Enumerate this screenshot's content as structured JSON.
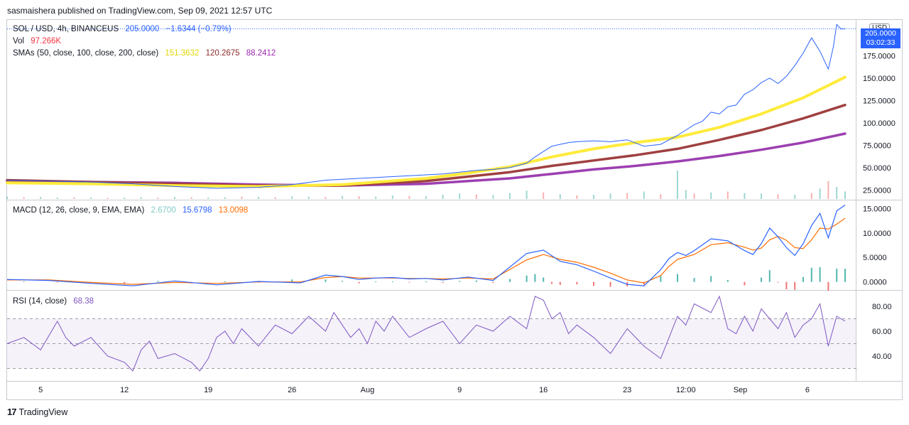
{
  "header": {
    "published": "sasmaishera published on TradingView.com, Sep 09, 2021 12:57 UTC"
  },
  "footer": {
    "brand": "TradingView",
    "logo_mark": "17"
  },
  "price_pane": {
    "symbol": "SOL / USD, 4h, BINANCEUS",
    "price": "205.0000",
    "change": "−1.6344 (−0.79%)",
    "vol_label": "Vol",
    "vol_value": "97.266K",
    "sma_label": "SMAs (50, close, 100, close, 200, close)",
    "sma50": "151.3632",
    "sma100": "120.2675",
    "sma200": "88.2412",
    "currency_badge": "USD",
    "price_tag": "205.0000",
    "countdown": "03:02:33"
  },
  "macd_pane": {
    "label": "MACD (12, 26, close, 9, EMA, EMA)",
    "hist": "2.6700",
    "macd": "15.6798",
    "signal": "13.0098"
  },
  "rsi_pane": {
    "label": "RSI (14, close)",
    "value": "68.38"
  },
  "colors": {
    "price": "#2962ff",
    "sma50": "#ffeb3b",
    "sma100": "#a04040",
    "sma200": "#9c3fb0",
    "macd": "#2962ff",
    "signal": "#ff6d00",
    "rsi": "#7e57c2",
    "vol_up": "#26a69a",
    "vol_down": "#ef5350"
  },
  "chart_data": [
    {
      "type": "line",
      "title": "SOL / USD, 4h, BINANCEUS",
      "ylim": [
        15,
        215
      ],
      "x_range": [
        0,
        100
      ],
      "y_ticks": [
        "175.0000",
        "150.0000",
        "125.0000",
        "100.0000",
        "75.0000",
        "50.0000",
        "25.0000"
      ],
      "y_tick_values": [
        175,
        150,
        125,
        100,
        75,
        50,
        25
      ],
      "series": [
        {
          "name": "Price",
          "x": [
            0,
            5,
            10,
            15,
            20,
            25,
            30,
            34,
            38,
            42,
            44,
            46,
            48,
            50,
            52,
            54,
            56,
            58,
            60,
            62,
            63,
            64,
            65,
            66,
            67,
            68,
            70,
            72,
            74,
            76,
            78,
            80,
            81,
            82,
            83,
            84,
            85,
            86,
            87,
            88,
            89,
            90,
            91,
            92,
            93,
            94,
            95,
            96,
            97,
            98,
            98.6,
            99,
            99.5,
            100
          ],
          "values": [
            36,
            35,
            34,
            32,
            29,
            27,
            28,
            31,
            36,
            38,
            39,
            40,
            41,
            42,
            43,
            45,
            47,
            48,
            50,
            55,
            62,
            68,
            74,
            76,
            78,
            79,
            80,
            79,
            81,
            74,
            76,
            86,
            92,
            98,
            102,
            112,
            110,
            118,
            120,
            132,
            137,
            145,
            150,
            144,
            152,
            164,
            178,
            195,
            180,
            160,
            185,
            210,
            205,
            205
          ]
        },
        {
          "name": "SMA 50",
          "x": [
            0,
            10,
            20,
            30,
            40,
            50,
            55,
            60,
            65,
            70,
            75,
            80,
            85,
            90,
            95,
            100
          ],
          "values": [
            33,
            32,
            30,
            29,
            31,
            38,
            44,
            51,
            62,
            71,
            78,
            84,
            95,
            110,
            128,
            151
          ]
        },
        {
          "name": "SMA 100",
          "x": [
            0,
            10,
            20,
            30,
            40,
            50,
            55,
            60,
            65,
            70,
            75,
            80,
            85,
            90,
            95,
            100
          ],
          "values": [
            36,
            34,
            32,
            30,
            30,
            35,
            40,
            45,
            52,
            58,
            64,
            71,
            81,
            92,
            105,
            120
          ]
        },
        {
          "name": "SMA 200",
          "x": [
            0,
            10,
            20,
            30,
            40,
            50,
            55,
            60,
            65,
            70,
            75,
            80,
            85,
            90,
            95,
            100
          ],
          "values": [
            35,
            34,
            33,
            31,
            30,
            32,
            35,
            38,
            43,
            48,
            52,
            57,
            63,
            70,
            78,
            88
          ]
        }
      ]
    },
    {
      "type": "bar",
      "title": "Vol",
      "x": [
        0,
        2,
        4,
        6,
        8,
        10,
        12,
        14,
        16,
        18,
        20,
        22,
        24,
        26,
        28,
        30,
        32,
        34,
        36,
        38,
        40,
        42,
        44,
        46,
        48,
        50,
        52,
        54,
        56,
        58,
        60,
        62,
        64,
        66,
        68,
        70,
        72,
        74,
        76,
        78,
        80,
        81,
        82,
        84,
        86,
        88,
        90,
        92,
        94,
        96,
        97,
        98,
        99,
        100
      ],
      "values": [
        8,
        6,
        7,
        5,
        6,
        5,
        4,
        5,
        6,
        5,
        7,
        6,
        5,
        6,
        8,
        7,
        6,
        9,
        8,
        7,
        10,
        9,
        8,
        12,
        10,
        9,
        14,
        18,
        15,
        13,
        20,
        28,
        22,
        16,
        12,
        14,
        18,
        20,
        25,
        16,
        95,
        30,
        18,
        22,
        25,
        20,
        18,
        16,
        14,
        20,
        35,
        60,
        40,
        25
      ],
      "up": [
        1,
        0,
        1,
        1,
        0,
        1,
        0,
        1,
        1,
        0,
        1,
        0,
        1,
        1,
        0,
        1,
        0,
        1,
        1,
        0,
        1,
        0,
        1,
        1,
        0,
        1,
        1,
        1,
        0,
        1,
        1,
        1,
        0,
        1,
        0,
        1,
        1,
        0,
        1,
        0,
        1,
        1,
        0,
        1,
        0,
        1,
        1,
        0,
        1,
        0,
        1,
        0,
        1,
        1
      ]
    },
    {
      "type": "line",
      "title": "MACD (12, 26, close, 9, EMA, EMA)",
      "ylim": [
        -1.5,
        16.5
      ],
      "y_ticks": [
        "15.0000",
        "10.0000",
        "5.0000",
        "0.0000"
      ],
      "y_tick_values": [
        15,
        10,
        5,
        0
      ],
      "series": [
        {
          "name": "MACD",
          "x": [
            0,
            5,
            10,
            15,
            20,
            25,
            30,
            35,
            38,
            40,
            42,
            44,
            46,
            48,
            50,
            52,
            55,
            58,
            62,
            64,
            66,
            68,
            70,
            72,
            74,
            76,
            78,
            79,
            80,
            81,
            82,
            84,
            86,
            88,
            89,
            90,
            91,
            92,
            93,
            94,
            95,
            96,
            97,
            98,
            99,
            100
          ],
          "values": [
            0.5,
            0.3,
            -0.3,
            -0.8,
            0.2,
            -0.6,
            0.1,
            -0.2,
            1.4,
            1.1,
            0.5,
            0.8,
            0.9,
            0.6,
            0.7,
            0.4,
            1.0,
            0.3,
            5.8,
            6.5,
            4.2,
            3.5,
            2.2,
            0.8,
            -0.5,
            -0.8,
            2.5,
            4.8,
            6.0,
            5.4,
            6.4,
            8.8,
            8.4,
            6.4,
            5.6,
            7.8,
            11.0,
            9.2,
            7.0,
            5.4,
            7.8,
            11.5,
            14.0,
            9.0,
            14.5,
            15.7
          ]
        },
        {
          "name": "Signal",
          "x": [
            0,
            5,
            10,
            15,
            20,
            25,
            30,
            35,
            38,
            40,
            42,
            44,
            46,
            48,
            50,
            52,
            55,
            58,
            62,
            64,
            66,
            68,
            70,
            72,
            74,
            76,
            78,
            79,
            80,
            81,
            82,
            84,
            86,
            88,
            89,
            90,
            91,
            92,
            93,
            94,
            95,
            96,
            97,
            98,
            99,
            100
          ],
          "values": [
            0.4,
            0.4,
            -0.1,
            -0.5,
            -0.1,
            -0.3,
            0.0,
            0.0,
            0.9,
            1.1,
            0.8,
            0.8,
            0.8,
            0.7,
            0.7,
            0.6,
            0.8,
            0.6,
            4.5,
            5.6,
            4.6,
            4.0,
            3.0,
            1.8,
            0.4,
            -0.2,
            1.3,
            3.2,
            4.6,
            5.1,
            5.6,
            7.6,
            8.0,
            7.1,
            6.5,
            6.9,
            8.6,
            9.3,
            8.5,
            7.0,
            6.8,
            8.6,
            11.0,
            10.8,
            11.8,
            13.0
          ]
        }
      ],
      "histogram_x": [
        2,
        6,
        10,
        14,
        18,
        22,
        26,
        30,
        34,
        38,
        40,
        42,
        44,
        46,
        48,
        50,
        52,
        54,
        56,
        58,
        60,
        62,
        63,
        64,
        65,
        66,
        68,
        70,
        72,
        74,
        76,
        78,
        80,
        82,
        84,
        86,
        88,
        90,
        91,
        92,
        93,
        94,
        95,
        96,
        97,
        98,
        99,
        100
      ],
      "histogram": [
        0.1,
        -0.1,
        -0.2,
        -0.3,
        0.2,
        -0.3,
        0.1,
        -0.1,
        0.5,
        0.5,
        0.2,
        -0.3,
        0.1,
        0.1,
        -0.1,
        0.1,
        -0.2,
        0.2,
        0.3,
        -0.2,
        0.6,
        1.3,
        1.6,
        0.9,
        -0.4,
        -0.6,
        -0.5,
        -0.8,
        -1.0,
        -0.9,
        -0.6,
        1.2,
        1.6,
        0.8,
        1.2,
        0.4,
        -0.7,
        0.9,
        2.4,
        -0.1,
        -1.5,
        -1.6,
        1.0,
        2.9,
        3.0,
        -1.8,
        2.7,
        2.7
      ]
    },
    {
      "type": "line",
      "title": "RSI (14, close)",
      "ylim": [
        20,
        92
      ],
      "y_ticks": [
        "80.00",
        "60.00",
        "40.00"
      ],
      "y_tick_values": [
        80,
        60,
        40
      ],
      "band": [
        30,
        70
      ],
      "middle": 50,
      "series": [
        {
          "name": "RSI",
          "x": [
            0,
            2,
            4,
            6,
            7,
            8,
            10,
            12,
            14,
            15,
            16,
            17,
            18,
            20,
            22,
            23,
            24,
            25,
            26,
            27,
            28,
            30,
            32,
            34,
            36,
            38,
            39,
            40,
            41,
            42,
            43,
            44,
            45,
            46,
            48,
            50,
            52,
            54,
            56,
            58,
            60,
            62,
            63,
            64,
            65,
            66,
            67,
            68,
            70,
            72,
            74,
            76,
            78,
            79,
            80,
            81,
            82,
            84,
            85,
            86,
            87,
            88,
            89,
            90,
            91,
            92,
            93,
            94,
            95,
            96,
            97,
            98,
            99,
            100
          ],
          "values": [
            50,
            55,
            45,
            68,
            55,
            48,
            55,
            40,
            35,
            28,
            45,
            52,
            38,
            42,
            35,
            28,
            38,
            55,
            60,
            50,
            62,
            48,
            65,
            58,
            72,
            60,
            75,
            65,
            55,
            62,
            50,
            68,
            60,
            72,
            55,
            62,
            68,
            50,
            65,
            60,
            72,
            62,
            88,
            85,
            70,
            75,
            58,
            65,
            55,
            42,
            62,
            48,
            38,
            55,
            72,
            65,
            82,
            75,
            88,
            62,
            58,
            72,
            60,
            78,
            70,
            62,
            75,
            55,
            65,
            70,
            82,
            48,
            72,
            68
          ]
        }
      ]
    }
  ],
  "x_axis_labels": [
    "5",
    "12",
    "19",
    "26",
    "Aug",
    "9",
    "16",
    "23",
    "12:00",
    "Sep",
    "6"
  ],
  "x_axis_positions": [
    4,
    14,
    24,
    34,
    43,
    54,
    64,
    74,
    81,
    87.5,
    95.5
  ]
}
